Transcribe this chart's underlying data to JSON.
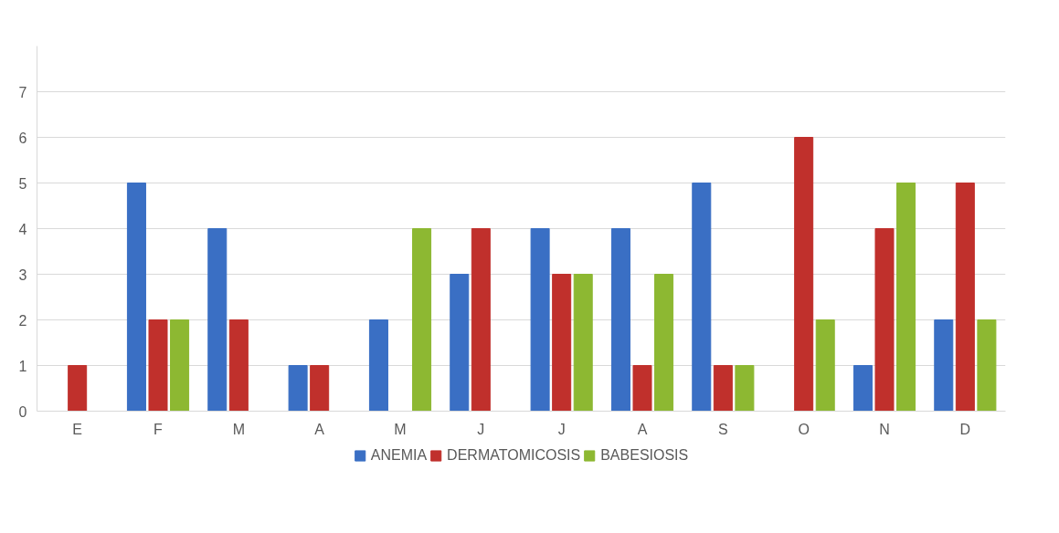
{
  "chart_data": {
    "type": "bar",
    "categories": [
      "E",
      "F",
      "M",
      "A",
      "M",
      "J",
      "J",
      "A",
      "S",
      "O",
      "N",
      "D"
    ],
    "series": [
      {
        "name": "ANEMIA",
        "color": "#3a6fc4",
        "values": [
          0,
          5,
          4,
          1,
          2,
          3,
          4,
          4,
          5,
          0,
          1,
          2
        ]
      },
      {
        "name": "DERMATOMICOSIS",
        "color": "#c0302c",
        "values": [
          1,
          2,
          2,
          1,
          0,
          4,
          3,
          1,
          1,
          6,
          4,
          5
        ]
      },
      {
        "name": "BABESIOSIS",
        "color": "#8db832",
        "values": [
          0,
          2,
          0,
          0,
          4,
          0,
          3,
          3,
          1,
          2,
          5,
          2
        ]
      }
    ],
    "ylim": [
      0,
      8
    ],
    "yticks": [
      0,
      1,
      2,
      3,
      4,
      5,
      6,
      7
    ],
    "grid": "y",
    "legend": "bottom"
  }
}
